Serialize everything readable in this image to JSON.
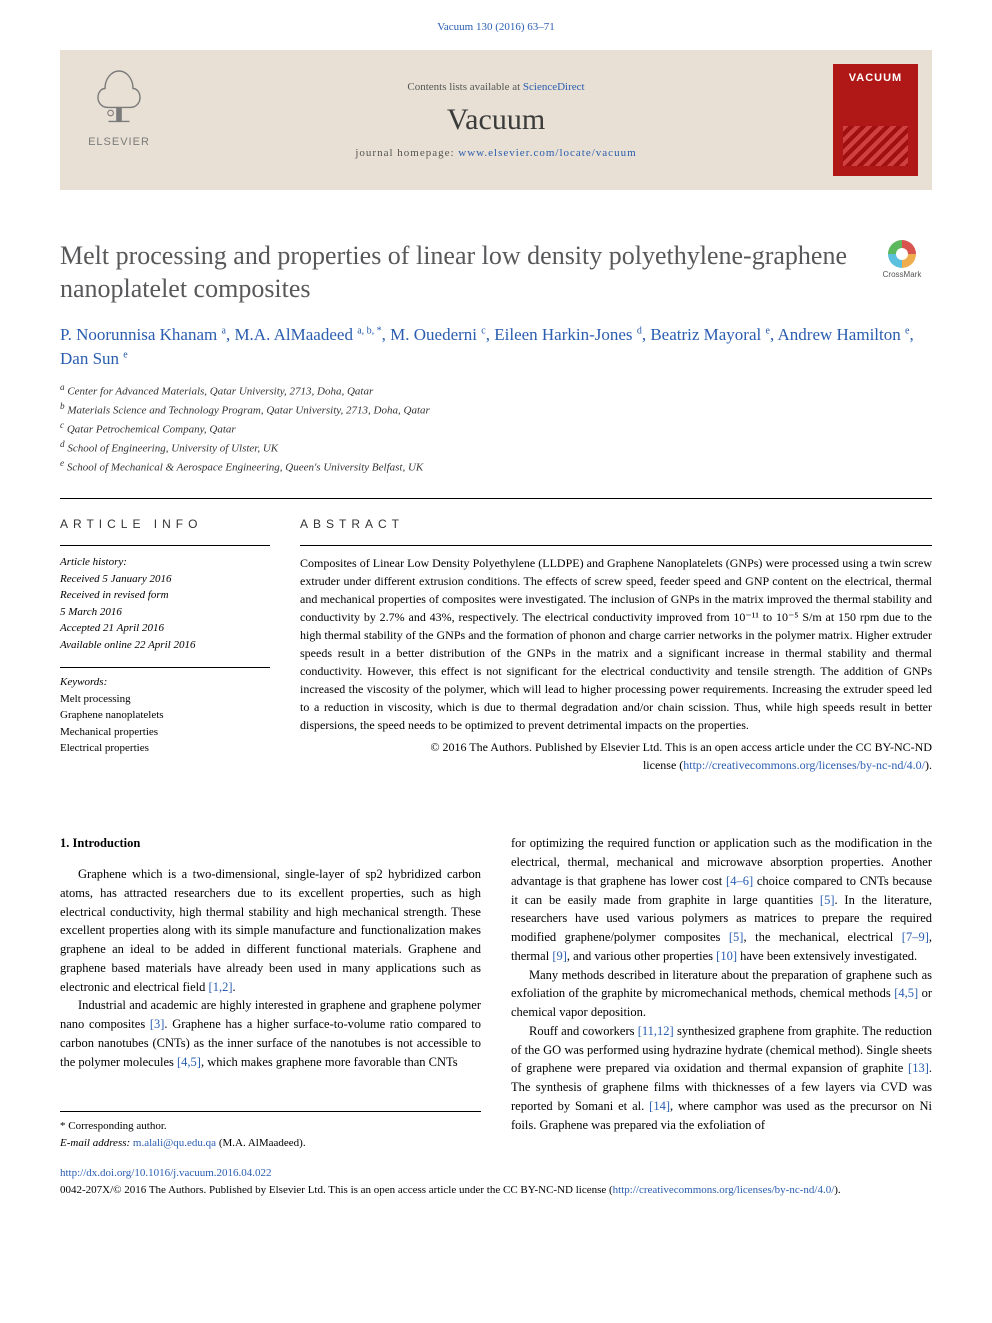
{
  "header": {
    "citation": "Vacuum 130 (2016) 63–71"
  },
  "banner": {
    "elsevier": "ELSEVIER",
    "contents_prefix": "Contents lists available at ",
    "contents_link": "ScienceDirect",
    "journal": "Vacuum",
    "homepage_prefix": "journal homepage: ",
    "homepage_url": "www.elsevier.com/locate/vacuum",
    "cover_text": "VACUUM"
  },
  "article": {
    "title": "Melt processing and properties of linear low density polyethylene-graphene nanoplatelet composites",
    "crossmark": "CrossMark",
    "authors_html": "P. Noorunnisa Khanam <sup>a</sup>, M.A. AlMaadeed <sup>a, b, *</sup>, M. Ouederni <sup>c</sup>, Eileen Harkin-Jones <sup>d</sup>, Beatriz Mayoral <sup>e</sup>, Andrew Hamilton <sup>e</sup>, Dan Sun <sup>e</sup>",
    "affiliations": [
      "a Center for Advanced Materials, Qatar University, 2713, Doha, Qatar",
      "b Materials Science and Technology Program, Qatar University, 2713, Doha, Qatar",
      "c Qatar Petrochemical Company, Qatar",
      "d School of Engineering, University of Ulster, UK",
      "e School of Mechanical & Aerospace Engineering, Queen's University Belfast, UK"
    ]
  },
  "info": {
    "heading_left": "ARTICLE INFO",
    "heading_right": "ABSTRACT",
    "history_label": "Article history:",
    "history": [
      "Received 5 January 2016",
      "Received in revised form",
      "5 March 2016",
      "Accepted 21 April 2016",
      "Available online 22 April 2016"
    ],
    "keywords_label": "Keywords:",
    "keywords": [
      "Melt processing",
      "Graphene nanoplatelets",
      "Mechanical properties",
      "Electrical properties"
    ],
    "abstract": "Composites of Linear Low Density Polyethylene (LLDPE) and Graphene Nanoplatelets (GNPs) were processed using a twin screw extruder under different extrusion conditions. The effects of screw speed, feeder speed and GNP content on the electrical, thermal and mechanical properties of composites were investigated. The inclusion of GNPs in the matrix improved the thermal stability and conductivity by 2.7% and 43%, respectively. The electrical conductivity improved from 10⁻¹¹ to 10⁻⁵ S/m at 150 rpm due to the high thermal stability of the GNPs and the formation of phonon and charge carrier networks in the polymer matrix. Higher extruder speeds result in a better distribution of the GNPs in the matrix and a significant increase in thermal stability and thermal conductivity. However, this effect is not significant for the electrical conductivity and tensile strength. The addition of GNPs increased the viscosity of the polymer, which will lead to higher processing power requirements. Increasing the extruder speed led to a reduction in viscosity, which is due to thermal degradation and/or chain scission. Thus, while high speeds result in better dispersions, the speed needs to be optimized to prevent detrimental impacts on the properties.",
    "copyright_line1": "© 2016 The Authors. Published by Elsevier Ltd. This is an open access article under the CC BY-NC-ND",
    "copyright_line2_prefix": "license (",
    "license_url": "http://creativecommons.org/licenses/by-nc-nd/4.0/",
    "copyright_line2_suffix": ")."
  },
  "body": {
    "section1_heading": "1. Introduction",
    "col1_p1": "Graphene which is a two-dimensional, single-layer of sp2 hybridized carbon atoms, has attracted researchers due to its excellent properties, such as high electrical conductivity, high thermal stability and high mechanical strength. These excellent properties along with its simple manufacture and functionalization makes graphene an ideal to be added in different functional materials. Graphene and graphene based materials have already been used in many applications such as electronic and electrical field ",
    "col1_p1_ref": "[1,2]",
    "col1_p1_end": ".",
    "col1_p2_a": "Industrial and academic are highly interested in graphene and graphene polymer nano composites ",
    "col1_p2_ref1": "[3]",
    "col1_p2_b": ". Graphene has a higher surface-to-volume ratio compared to carbon nanotubes (CNTs) as the inner surface of the nanotubes is not accessible to the polymer molecules ",
    "col1_p2_ref2": "[4,5]",
    "col1_p2_c": ", which makes graphene more favorable than CNTs",
    "col2_p1_a": "for optimizing the required function or application such as the modification in the electrical, thermal, mechanical and microwave absorption properties. Another advantage is that graphene has lower cost ",
    "col2_p1_ref1": "[4–6]",
    "col2_p1_b": " choice compared to CNTs because it can be easily made from graphite in large quantities ",
    "col2_p1_ref2": "[5]",
    "col2_p1_c": ". In the literature, researchers have used various polymers as matrices to prepare the required modified graphene/polymer composites ",
    "col2_p1_ref3": "[5]",
    "col2_p1_d": ", the mechanical, electrical ",
    "col2_p1_ref4": "[7–9]",
    "col2_p1_e": ", thermal ",
    "col2_p1_ref5": "[9]",
    "col2_p1_f": ", and various other properties ",
    "col2_p1_ref6": "[10]",
    "col2_p1_g": " have been extensively investigated.",
    "col2_p2_a": "Many methods described in literature about the preparation of graphene such as exfoliation of the graphite by micromechanical methods, chemical methods ",
    "col2_p2_ref1": "[4,5]",
    "col2_p2_b": " or chemical vapor deposition.",
    "col2_p3_a": "Rouff and coworkers ",
    "col2_p3_ref1": "[11,12]",
    "col2_p3_b": " synthesized graphene from graphite. The reduction of the GO was performed using hydrazine hydrate (chemical method). Single sheets of graphene were prepared via oxidation and thermal expansion of graphite ",
    "col2_p3_ref2": "[13]",
    "col2_p3_c": ". The synthesis of graphene films with thicknesses of a few layers via CVD was reported by Somani et al. ",
    "col2_p3_ref3": "[14]",
    "col2_p3_d": ", where camphor was used as the precursor on Ni foils. Graphene was prepared via the exfoliation of"
  },
  "footnote": {
    "corr": "* Corresponding author.",
    "email_label": "E-mail address: ",
    "email": "m.alali@qu.edu.qa",
    "email_suffix": " (M.A. AlMaadeed)."
  },
  "footer": {
    "doi": "http://dx.doi.org/10.1016/j.vacuum.2016.04.022",
    "issn_line_a": "0042-207X/© 2016 The Authors. Published by Elsevier Ltd. This is an open access article under the CC BY-NC-ND license (",
    "issn_url": "http://creativecommons.org/licenses/by-nc-nd/4.0/",
    "issn_line_b": ")."
  },
  "colors": {
    "link": "#2a5db0",
    "banner_bg": "#e8e0d4",
    "title_gray": "#58585a",
    "cover_red": "#b01818"
  }
}
